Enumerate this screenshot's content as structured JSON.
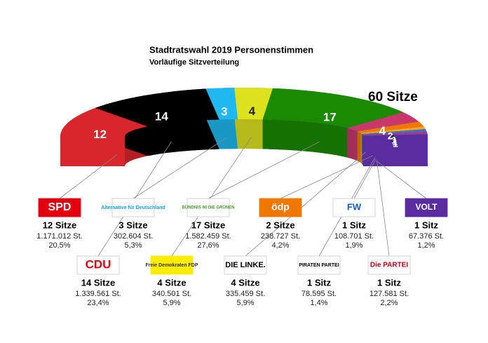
{
  "chart_data": {
    "type": "parliament",
    "title": "Stadtratswahl 2019 Personenstimmen",
    "subtitle": "Vorläufige Sitzverteilung",
    "total_label": "60 Sitze",
    "categories": [
      "SPD",
      "CDU",
      "Alternative für Deutschland",
      "Freie Demokraten FDP",
      "BÜNDNIS 90 DIE GRÜNEN",
      "DIE LINKE.",
      "ödp",
      "PIRATEN PARTEI",
      "FW",
      "Die PARTEI",
      "VOLT"
    ],
    "values": [
      12,
      14,
      3,
      4,
      17,
      4,
      2,
      1,
      1,
      1,
      1
    ],
    "colors": [
      "#d9262c",
      "#000000",
      "#1fb8f0",
      "#dde21e",
      "#1a8a00",
      "#c8386a",
      "#f07800",
      "#f5a623",
      "#3f6fc8",
      "#9b3c8c",
      "#5a2ca0"
    ],
    "seat_labels": [
      "12 Sitze",
      "14 Sitze",
      "3 Sitze",
      "4 Sitze",
      "17 Sitze",
      "4 Sitze",
      "2 Sitze",
      "1 Sitz",
      "1 Sitz",
      "1 Sitz",
      "1 Sitz"
    ],
    "votes": [
      "1.171.012 St.",
      "1.339.561 St.",
      "302.604 St.",
      "340.501 St.",
      "1.582.459 St.",
      "335.459 St.",
      "238.727 St.",
      "78.595 St.",
      "108.701 St.",
      "127.581 St.",
      "67.376 St."
    ],
    "shares": [
      "20,5%",
      "23,4%",
      "5,3%",
      "5,9%",
      "27,6%",
      "5,9%",
      "4,2%",
      "1,4%",
      "1,9%",
      "2,2%",
      "1,2%"
    ]
  }
}
